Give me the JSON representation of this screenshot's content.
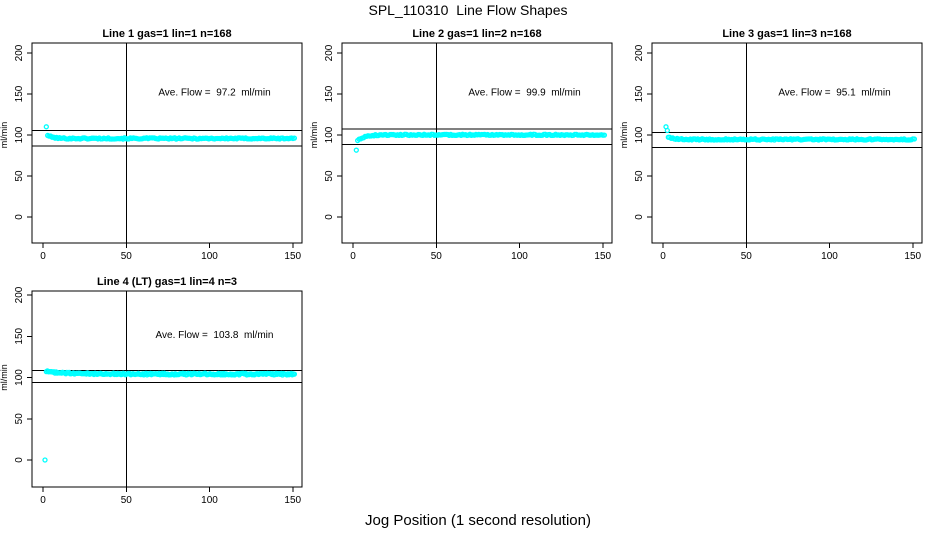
{
  "figure": {
    "title": "SPL_110310  Line Flow Shapes",
    "xlabel": "Jog Position (1 second resolution)",
    "background": "#FFFFFF",
    "marker_color": "#00FFFF",
    "axis_color": "#000000"
  },
  "chart_data": [
    {
      "type": "scatter",
      "title": "Line 1 gas=1 lin=1 n=168",
      "annotation": "Ave. Flow =  97.2  ml/min",
      "ave_flow_ml_min": 97.2,
      "n_runs": 168,
      "ylabel": "ml/min",
      "x_ticks": [
        0,
        50,
        100,
        150
      ],
      "y_ticks": [
        0,
        50,
        100,
        150,
        200
      ],
      "xlim": [
        -6,
        155
      ],
      "ylim": [
        -32,
        212
      ],
      "vline_x": 50,
      "hlines_y": [
        105.2,
        86.3
      ],
      "grid": {
        "row": 0,
        "col": 0
      },
      "outlier_points": [
        [
          2,
          110
        ]
      ],
      "band": {
        "x_start": 2.8,
        "x_end": 151,
        "n": 168,
        "start_value": 99.8,
        "settle_value": 95.8,
        "decay_tau": 3,
        "noise": 0.8,
        "seed": 101
      }
    },
    {
      "type": "scatter",
      "title": "Line 2 gas=1 lin=2 n=168",
      "annotation": "Ave. Flow =  99.9  ml/min",
      "ave_flow_ml_min": 99.9,
      "n_runs": 168,
      "ylabel": "ml/min",
      "x_ticks": [
        0,
        50,
        100,
        150
      ],
      "y_ticks": [
        0,
        50,
        100,
        150,
        200
      ],
      "xlim": [
        -6,
        155
      ],
      "ylim": [
        -32,
        212
      ],
      "vline_x": 50,
      "hlines_y": [
        107.5,
        88.6
      ],
      "grid": {
        "row": 0,
        "col": 1
      },
      "outlier_points": [
        [
          2,
          81.5
        ]
      ],
      "band": {
        "x_start": 2.8,
        "x_end": 151,
        "n": 168,
        "start_value": 93.5,
        "settle_value": 100.2,
        "decay_tau": 4,
        "noise": 0.75,
        "seed": 202
      }
    },
    {
      "type": "scatter",
      "title": "Line 3 gas=1 lin=3 n=168",
      "annotation": "Ave. Flow =  95.1  ml/min",
      "ave_flow_ml_min": 95.1,
      "n_runs": 168,
      "ylabel": "ml/min",
      "x_ticks": [
        0,
        50,
        100,
        150
      ],
      "y_ticks": [
        0,
        50,
        100,
        150,
        200
      ],
      "xlim": [
        -6,
        155
      ],
      "ylim": [
        -32,
        212
      ],
      "vline_x": 50,
      "hlines_y": [
        103.2,
        85.0
      ],
      "grid": {
        "row": 0,
        "col": 2
      },
      "outlier_points": [
        [
          1.8,
          110
        ],
        [
          2.6,
          105.5
        ]
      ],
      "band": {
        "x_start": 3.2,
        "x_end": 151,
        "n": 168,
        "start_value": 97.5,
        "settle_value": 94.6,
        "decay_tau": 3,
        "noise": 0.8,
        "seed": 303
      }
    },
    {
      "type": "scatter",
      "title": "Line 4 (LT) gas=1 lin=4 n=3",
      "annotation": "Ave. Flow =  103.8  ml/min",
      "ave_flow_ml_min": 103.8,
      "n_runs": 3,
      "ylabel": "ml/min",
      "x_ticks": [
        0,
        50,
        100,
        150
      ],
      "y_ticks": [
        0,
        50,
        100,
        150,
        200
      ],
      "xlim": [
        -6,
        155
      ],
      "ylim": [
        -32,
        212
      ],
      "vline_x": 50,
      "hlines_y": [
        108.2,
        93.8
      ],
      "grid": {
        "row": 1,
        "col": 0
      },
      "outlier_points": [
        [
          1.2,
          0
        ]
      ],
      "band": {
        "x_start": 2,
        "x_end": 151,
        "n": 230,
        "start_value": 107.3,
        "settle_value": 104.1,
        "decay_tau": 14,
        "noise": 1.0,
        "seed": 404
      }
    }
  ]
}
